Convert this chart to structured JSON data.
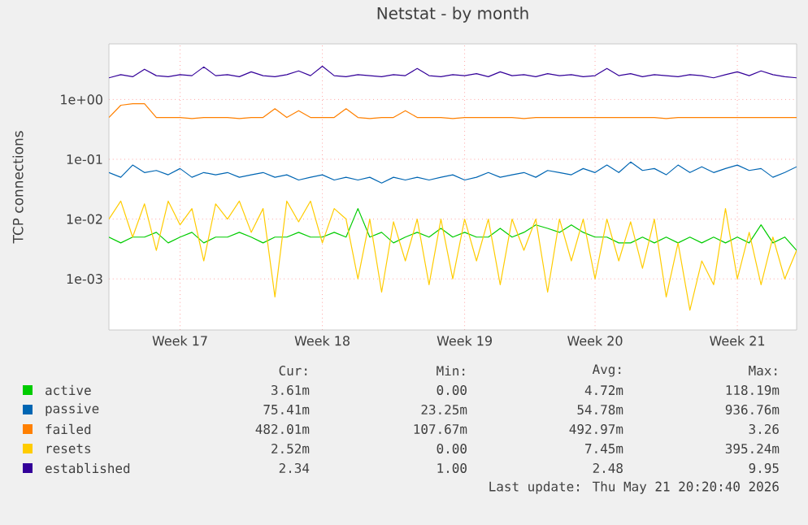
{
  "chart_data": {
    "type": "line",
    "title": "Netstat - by month",
    "ylabel": "TCP connections",
    "log": true,
    "grid": true,
    "legend": "bottom",
    "marker": "none",
    "line_style": "solid",
    "ylim": [
      0.00014,
      8.5
    ],
    "yticks": [
      {
        "value": 0.001,
        "label": "1e-03"
      },
      {
        "value": 0.01,
        "label": "1e-02"
      },
      {
        "value": 0.1,
        "label": "1e-01"
      },
      {
        "value": 1,
        "label": "1e+00"
      }
    ],
    "categories": [
      null,
      null,
      null,
      null,
      null,
      null,
      "Week 17",
      null,
      null,
      null,
      null,
      null,
      null,
      null,
      null,
      null,
      null,
      null,
      "Week 18",
      null,
      null,
      null,
      null,
      null,
      null,
      null,
      null,
      null,
      null,
      null,
      "Week 19",
      null,
      null,
      null,
      null,
      null,
      null,
      null,
      null,
      null,
      null,
      "Week 20",
      null,
      null,
      null,
      null,
      null,
      null,
      null,
      null,
      null,
      null,
      null,
      "Week 21",
      null,
      null,
      null,
      null,
      null
    ],
    "series": [
      {
        "name": "active",
        "color": "#00cc00",
        "values": [
          0.005,
          0.004,
          0.005,
          0.005,
          0.006,
          0.004,
          0.005,
          0.006,
          0.004,
          0.005,
          0.005,
          0.006,
          0.005,
          0.004,
          0.005,
          0.005,
          0.006,
          0.005,
          0.005,
          0.006,
          0.005,
          0.015,
          0.005,
          0.006,
          0.004,
          0.005,
          0.006,
          0.005,
          0.007,
          0.005,
          0.006,
          0.005,
          0.005,
          0.007,
          0.005,
          0.006,
          0.008,
          0.007,
          0.006,
          0.008,
          0.006,
          0.005,
          0.005,
          0.004,
          0.004,
          0.005,
          0.004,
          0.005,
          0.004,
          0.005,
          0.004,
          0.005,
          0.004,
          0.005,
          0.004,
          0.008,
          0.004,
          0.005,
          0.003
        ]
      },
      {
        "name": "passive",
        "color": "#0066b3",
        "values": [
          0.06,
          0.05,
          0.08,
          0.06,
          0.065,
          0.055,
          0.07,
          0.05,
          0.06,
          0.055,
          0.06,
          0.05,
          0.055,
          0.06,
          0.05,
          0.055,
          0.045,
          0.05,
          0.055,
          0.045,
          0.05,
          0.045,
          0.05,
          0.04,
          0.05,
          0.045,
          0.05,
          0.045,
          0.05,
          0.055,
          0.045,
          0.05,
          0.06,
          0.05,
          0.055,
          0.06,
          0.05,
          0.065,
          0.06,
          0.055,
          0.07,
          0.06,
          0.08,
          0.06,
          0.09,
          0.065,
          0.07,
          0.055,
          0.08,
          0.06,
          0.075,
          0.06,
          0.07,
          0.08,
          0.065,
          0.07,
          0.05,
          0.06,
          0.075
        ]
      },
      {
        "name": "failed",
        "color": "#ff8000",
        "values": [
          0.5,
          0.8,
          0.85,
          0.85,
          0.5,
          0.5,
          0.5,
          0.48,
          0.5,
          0.5,
          0.5,
          0.48,
          0.5,
          0.5,
          0.7,
          0.5,
          0.65,
          0.5,
          0.5,
          0.5,
          0.7,
          0.5,
          0.48,
          0.5,
          0.5,
          0.65,
          0.5,
          0.5,
          0.5,
          0.48,
          0.5,
          0.5,
          0.5,
          0.5,
          0.5,
          0.48,
          0.5,
          0.5,
          0.5,
          0.5,
          0.5,
          0.5,
          0.5,
          0.5,
          0.5,
          0.5,
          0.5,
          0.48,
          0.5,
          0.5,
          0.5,
          0.5,
          0.5,
          0.5,
          0.5,
          0.5,
          0.5,
          0.5,
          0.5
        ]
      },
      {
        "name": "resets",
        "color": "#ffcc00",
        "values": [
          0.01,
          0.02,
          0.005,
          0.018,
          0.003,
          0.02,
          0.008,
          0.015,
          0.002,
          0.018,
          0.01,
          0.02,
          0.006,
          0.015,
          0.0005,
          0.02,
          0.009,
          0.02,
          0.004,
          0.015,
          0.01,
          0.001,
          0.01,
          0.0006,
          0.009,
          0.002,
          0.01,
          0.0008,
          0.01,
          0.001,
          0.01,
          0.002,
          0.01,
          0.0008,
          0.01,
          0.003,
          0.01,
          0.0006,
          0.01,
          0.002,
          0.01,
          0.001,
          0.01,
          0.002,
          0.009,
          0.0015,
          0.01,
          0.0005,
          0.004,
          0.0003,
          0.002,
          0.0008,
          0.015,
          0.001,
          0.006,
          0.0008,
          0.005,
          0.001,
          0.003
        ]
      },
      {
        "name": "established",
        "color": "#330099",
        "values": [
          2.3,
          2.6,
          2.4,
          3.2,
          2.5,
          2.4,
          2.6,
          2.5,
          3.5,
          2.5,
          2.6,
          2.4,
          2.9,
          2.5,
          2.4,
          2.6,
          3.0,
          2.5,
          3.6,
          2.5,
          2.4,
          2.6,
          2.5,
          2.4,
          2.6,
          2.5,
          3.3,
          2.5,
          2.4,
          2.6,
          2.5,
          2.7,
          2.4,
          2.9,
          2.5,
          2.6,
          2.4,
          2.7,
          2.5,
          2.6,
          2.4,
          2.5,
          3.3,
          2.5,
          2.7,
          2.4,
          2.6,
          2.5,
          2.4,
          2.6,
          2.5,
          2.3,
          2.6,
          2.9,
          2.5,
          3.0,
          2.6,
          2.4,
          2.3
        ]
      }
    ],
    "annotations": [
      "Cur:",
      "Min:",
      "Avg:",
      "Max:",
      "3.61m",
      "0.00",
      "4.72m",
      "118.19m",
      "75.41m",
      "23.25m",
      "54.78m",
      "936.76m",
      "482.01m",
      "107.67m",
      "492.97m",
      "3.26",
      "2.52m",
      "0.00",
      "7.45m",
      "395.24m",
      "2.34",
      "1.00",
      "2.48",
      "9.95",
      "Last update: Thu May 21 20:20:40 2026"
    ]
  }
}
